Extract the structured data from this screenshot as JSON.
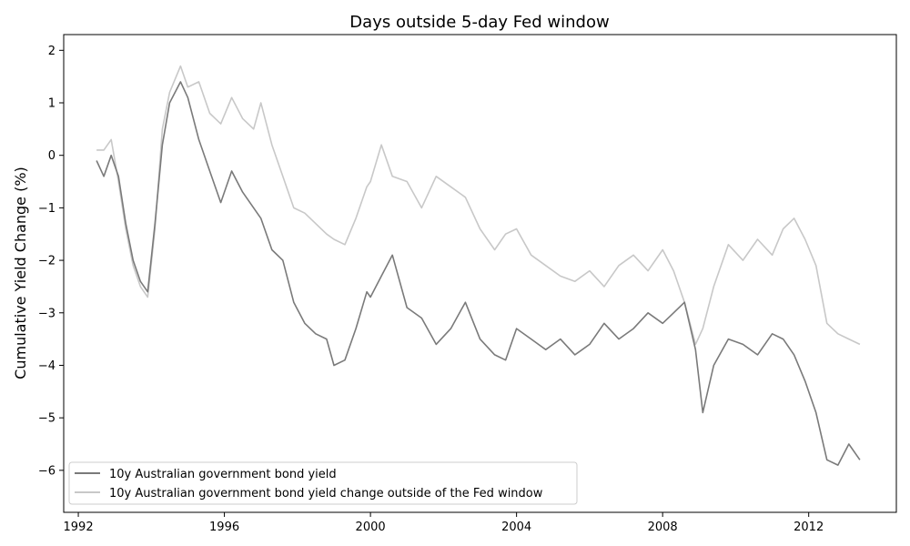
{
  "chart_data": {
    "type": "line",
    "title": "Days outside 5-day Fed window",
    "xlabel": "",
    "ylabel": "Cumulative Yield Change (%)",
    "xlim": [
      1991.6,
      2014.4
    ],
    "ylim": [
      -6.8,
      2.3
    ],
    "x_ticks": [
      1992,
      1996,
      2000,
      2004,
      2008,
      2012
    ],
    "y_ticks": [
      2,
      1,
      0,
      -1,
      -2,
      -3,
      -4,
      -5,
      -6
    ],
    "y_tick_labels": [
      "2",
      "1",
      "0",
      "−1",
      "−2",
      "−3",
      "−4",
      "−5",
      "−6"
    ],
    "grid": false,
    "legend_position": "lower-left",
    "x": [
      1992.5,
      1992.7,
      1992.9,
      1993.1,
      1993.3,
      1993.5,
      1993.7,
      1993.9,
      1994.1,
      1994.3,
      1994.5,
      1994.8,
      1995.0,
      1995.3,
      1995.6,
      1995.9,
      1996.2,
      1996.5,
      1996.8,
      1997.0,
      1997.3,
      1997.6,
      1997.9,
      1998.2,
      1998.5,
      1998.8,
      1999.0,
      1999.3,
      1999.6,
      1999.9,
      2000.0,
      2000.3,
      2000.6,
      2001.0,
      2001.4,
      2001.8,
      2002.2,
      2002.6,
      2003.0,
      2003.4,
      2003.7,
      2004.0,
      2004.4,
      2004.8,
      2005.2,
      2005.6,
      2006.0,
      2006.4,
      2006.8,
      2007.2,
      2007.6,
      2008.0,
      2008.3,
      2008.6,
      2008.9,
      2009.1,
      2009.4,
      2009.8,
      2010.2,
      2010.6,
      2011.0,
      2011.3,
      2011.6,
      2011.9,
      2012.2,
      2012.5,
      2012.8,
      2013.1,
      2013.4
    ],
    "series": [
      {
        "name": "10y Australian government bond yield",
        "color": "#7a7a7a",
        "values": [
          -0.1,
          -0.4,
          0.0,
          -0.4,
          -1.3,
          -2.0,
          -2.4,
          -2.6,
          -1.3,
          0.2,
          1.0,
          1.4,
          1.1,
          0.3,
          -0.3,
          -0.9,
          -0.3,
          -0.7,
          -1.0,
          -1.2,
          -1.8,
          -2.0,
          -2.8,
          -3.2,
          -3.4,
          -3.5,
          -4.0,
          -3.9,
          -3.3,
          -2.6,
          -2.7,
          -2.3,
          -1.9,
          -2.9,
          -3.1,
          -3.6,
          -3.3,
          -2.8,
          -3.5,
          -3.8,
          -3.9,
          -3.3,
          -3.5,
          -3.7,
          -3.5,
          -3.8,
          -3.6,
          -3.2,
          -3.5,
          -3.3,
          -3.0,
          -3.2,
          -3.0,
          -2.8,
          -3.7,
          -4.9,
          -4.0,
          -3.5,
          -3.6,
          -3.8,
          -3.4,
          -3.5,
          -3.8,
          -4.3,
          -4.9,
          -5.8,
          -5.9,
          -5.5,
          -5.8
        ]
      },
      {
        "name": "10y Australian government bond yield change outside of the Fed window",
        "color": "#c8c8c8",
        "values": [
          0.1,
          0.1,
          0.3,
          -0.5,
          -1.4,
          -2.1,
          -2.5,
          -2.7,
          -1.4,
          0.5,
          1.2,
          1.7,
          1.3,
          1.4,
          0.8,
          0.6,
          1.1,
          0.7,
          0.5,
          1.0,
          0.2,
          -0.4,
          -1.0,
          -1.1,
          -1.3,
          -1.5,
          -1.6,
          -1.7,
          -1.2,
          -0.6,
          -0.5,
          0.2,
          -0.4,
          -0.5,
          -1.0,
          -0.4,
          -0.6,
          -0.8,
          -1.4,
          -1.8,
          -1.5,
          -1.4,
          -1.9,
          -2.1,
          -2.3,
          -2.4,
          -2.2,
          -2.5,
          -2.1,
          -1.9,
          -2.2,
          -1.8,
          -2.2,
          -2.8,
          -3.6,
          -3.3,
          -2.5,
          -1.7,
          -2.0,
          -1.6,
          -1.9,
          -1.4,
          -1.2,
          -1.6,
          -2.1,
          -3.2,
          -3.4,
          -3.5,
          -3.6
        ]
      }
    ]
  }
}
